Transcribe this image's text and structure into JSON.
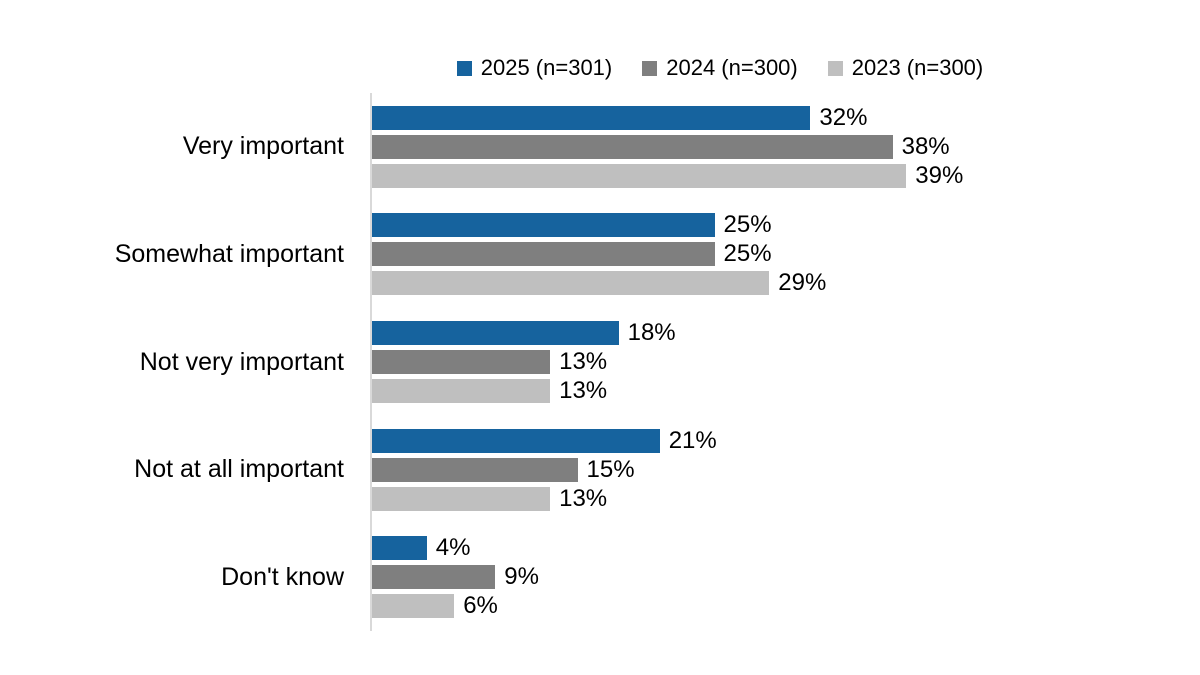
{
  "chart_data": {
    "type": "bar",
    "orientation": "horizontal",
    "legend_position": "top",
    "grid": false,
    "data_labels": true,
    "value_suffix": "%",
    "xlim": [
      0,
      46
    ],
    "axis_line_color": "#D9D9D9",
    "text_color": "#000000",
    "categories": [
      "Very important",
      "Somewhat important",
      "Not very important",
      "Not at all important",
      "Don't know"
    ],
    "series": [
      {
        "name": "2025 (n=301)",
        "color": "#16639E",
        "values": [
          32,
          25,
          18,
          21,
          4
        ]
      },
      {
        "name": "2024 (n=300)",
        "color": "#7F7F7F",
        "values": [
          38,
          25,
          13,
          15,
          9
        ]
      },
      {
        "name": "2023 (n=300)",
        "color": "#BFBFBF",
        "values": [
          39,
          29,
          13,
          13,
          6
        ]
      }
    ]
  }
}
